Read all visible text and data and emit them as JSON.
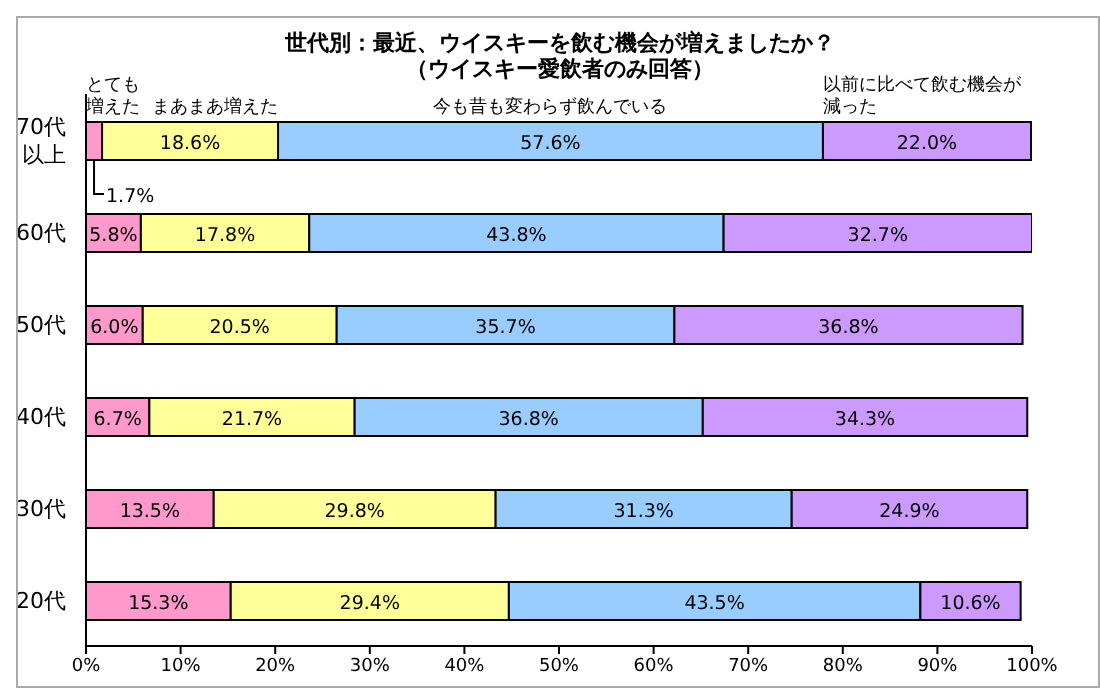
{
  "chart_data": {
    "type": "bar",
    "orientation": "horizontal",
    "stacked": true,
    "title": "世代別：最近、ウイスキーを飲む機会が増えましたか？",
    "subtitle": "（ウイスキー愛飲者のみ回答）",
    "categories": [
      "70代以上",
      "60代",
      "50代",
      "40代",
      "30代",
      "20代"
    ],
    "series": [
      {
        "name": "とても増えた",
        "color": "#ff99cc",
        "values": [
          1.7,
          5.8,
          6.0,
          6.7,
          13.5,
          15.3
        ],
        "value_labels": [
          "1.7%",
          "5.8%",
          "6.0%",
          "6.7%",
          "13.5%",
          "15.3%"
        ]
      },
      {
        "name": "まあまあ増えた",
        "color": "#ffff99",
        "values": [
          18.6,
          17.8,
          20.5,
          21.7,
          29.8,
          29.4
        ],
        "value_labels": [
          "18.6%",
          "17.8%",
          "20.5%",
          "21.7%",
          "29.8%",
          "29.4%"
        ]
      },
      {
        "name": "今も昔も変わらず飲んでいる",
        "color": "#99ccff",
        "values": [
          57.6,
          43.8,
          35.7,
          36.8,
          31.3,
          43.5
        ],
        "value_labels": [
          "57.6%",
          "43.8%",
          "35.7%",
          "36.8%",
          "31.3%",
          "43.5%"
        ]
      },
      {
        "name": "以前に比べて飲む機会が減った",
        "color": "#cc99ff",
        "values": [
          22.0,
          32.7,
          36.8,
          34.3,
          24.9,
          10.6
        ],
        "value_labels": [
          "22.0%",
          "32.7%",
          "36.8%",
          "34.3%",
          "24.9%",
          "10.6%"
        ]
      }
    ],
    "xlim": [
      0,
      100
    ],
    "xticks": [
      {
        "value": 0,
        "label": "0%"
      },
      {
        "value": 10,
        "label": "10%"
      },
      {
        "value": 20,
        "label": "20%"
      },
      {
        "value": 30,
        "label": "30%"
      },
      {
        "value": 40,
        "label": "40%"
      },
      {
        "value": 50,
        "label": "50%"
      },
      {
        "value": 60,
        "label": "60%"
      },
      {
        "value": 70,
        "label": "70%"
      },
      {
        "value": 80,
        "label": "80%"
      },
      {
        "value": 90,
        "label": "90%"
      },
      {
        "value": 100,
        "label": "100%"
      }
    ],
    "grid": false,
    "legend": false
  }
}
